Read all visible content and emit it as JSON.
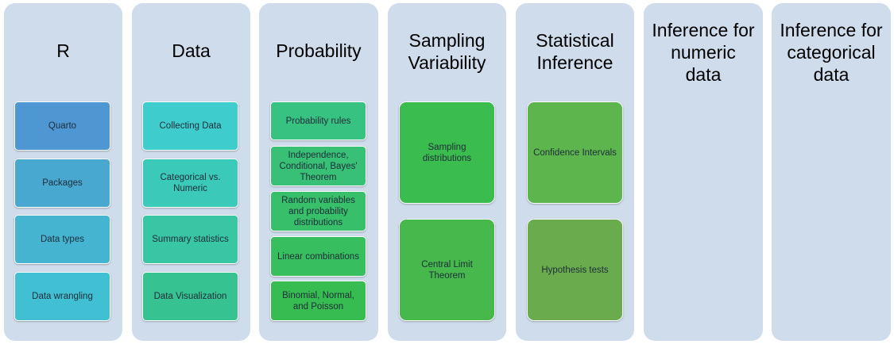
{
  "columns": [
    {
      "title": "R",
      "items": [
        "Quarto",
        "Packages",
        "Data types",
        "Data wrangling"
      ],
      "colors": [
        "#4f97d2",
        "#48a8cf",
        "#45b4d1",
        "#42c0d3"
      ]
    },
    {
      "title": "Data",
      "items": [
        "Collecting Data",
        "Categorical vs.\nNumeric",
        "Summary statistics",
        "Data Visualization"
      ],
      "colors": [
        "#3ecdcc",
        "#3bc9b9",
        "#38c6a5",
        "#37c391"
      ]
    },
    {
      "title": "Probability",
      "items": [
        "Probability rules",
        "Independence,\nConditional, Bayes'\nTheorem",
        "Random variables\nand probability\ndistributions",
        "Linear combinations",
        "Binomial, Normal,\nand Poisson"
      ],
      "colors": [
        "#37c282",
        "#37c076",
        "#37bf6a",
        "#37be5e",
        "#37bc52"
      ]
    },
    {
      "title": "Sampling\nVariability",
      "items": [
        "Sampling\ndistributions",
        "Central Limit\nTheorem"
      ],
      "colors": [
        "#3bbc4e",
        "#46b84c"
      ]
    },
    {
      "title": "Statistical\nInference",
      "items": [
        "Confidence Intervals",
        "Hypothesis tests"
      ],
      "colors": [
        "#5cb54d",
        "#6aab4e"
      ]
    },
    {
      "title": "Inference for\nnumeric\ndata",
      "items": [],
      "colors": []
    },
    {
      "title": "Inference for\ncategorical\ndata",
      "items": [],
      "colors": []
    }
  ]
}
